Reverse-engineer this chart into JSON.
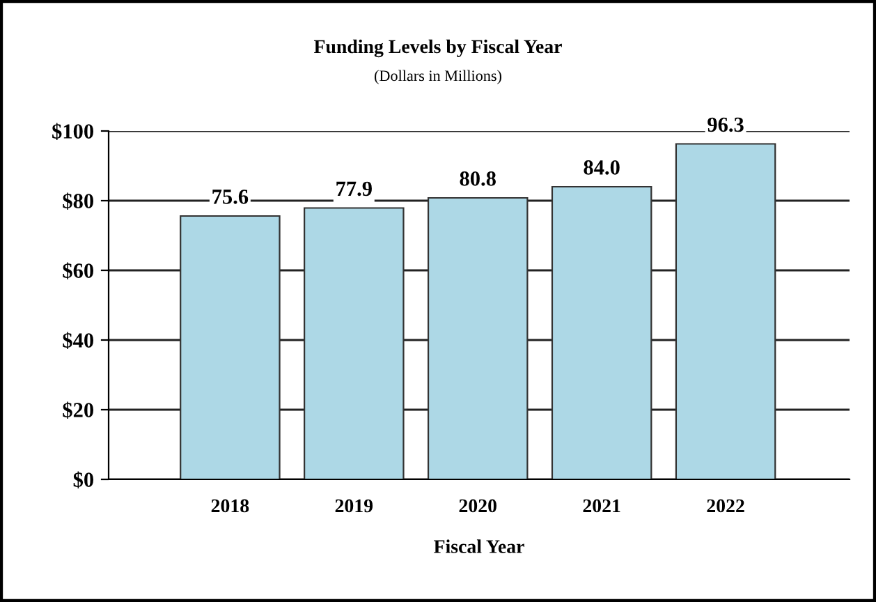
{
  "chart_data": {
    "type": "bar",
    "title": "Funding Levels by Fiscal Year",
    "subtitle": "(Dollars in Millions)",
    "xlabel": "Fiscal Year",
    "categories": [
      "2018",
      "2019",
      "2020",
      "2021",
      "2022"
    ],
    "values": [
      75.6,
      77.9,
      80.8,
      84.0,
      96.3
    ],
    "color": "#add8e6",
    "ylim": [
      0,
      100
    ],
    "yticks": [
      {
        "value": 0,
        "label": "$0"
      },
      {
        "value": 20,
        "label": "$20"
      },
      {
        "value": 40,
        "label": "$40"
      },
      {
        "value": 60,
        "label": "$60"
      },
      {
        "value": 80,
        "label": "$80"
      },
      {
        "value": 100,
        "label": "$100"
      }
    ],
    "value_labels": [
      "75.6",
      "77.9",
      "80.8",
      "84.0",
      "96.3"
    ],
    "grid": "y",
    "legend": false
  }
}
